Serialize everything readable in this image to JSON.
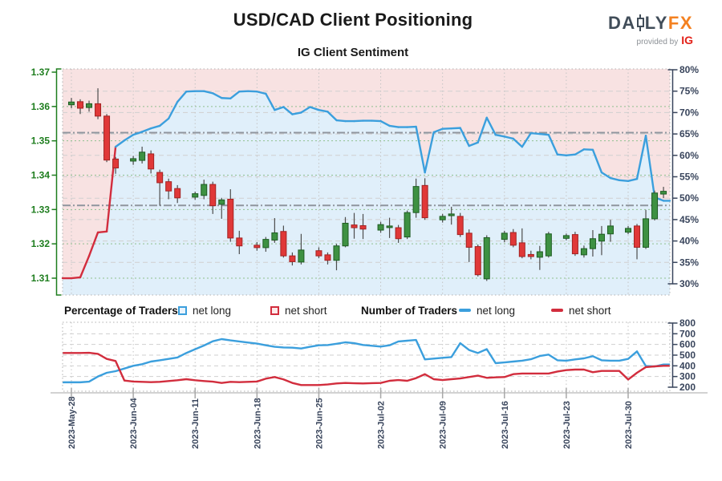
{
  "header": {
    "title": "USD/CAD Client Positioning",
    "subtitle": "IG Client Sentiment"
  },
  "logo": {
    "brand_prefix": "DA",
    "brand_suffix": "LY",
    "brand_accent": "FX",
    "provided_by": "provided by",
    "ig": "IG"
  },
  "legend": {
    "pct_group": "Percentage of Traders",
    "num_group": "Number of Traders",
    "net_long": "net long",
    "net_short": "net short"
  },
  "colors": {
    "net_long": "#3b9fdd",
    "net_short": "#d22d3d",
    "candle_up": "#3e9142",
    "candle_up_border": "#1e5c22",
    "candle_down": "#e03838",
    "candle_down_border": "#a32222",
    "wick": "#4d4d4d",
    "fill_above": "#f8e2e2",
    "fill_below": "#e0effa",
    "price_axis": "#1e7d1e",
    "value_axis": "#39455c",
    "grid_green": "#8fc08f",
    "grid_gray": "#cfcfcf",
    "ref_line": "#8f959e",
    "axis_line": "#c4c4c4"
  },
  "chart_data": [
    {
      "type": "candlestick+line",
      "title": "USD/CAD Client Positioning",
      "subtitle": "IG Client Sentiment",
      "price_axis": {
        "side": "left",
        "min": 1.31,
        "max": 1.37,
        "ticks": [
          "1.37",
          "1.36",
          "1.35",
          "1.34",
          "1.33",
          "1.32",
          "1.31"
        ]
      },
      "pct_axis": {
        "side": "right",
        "min": 30,
        "max": 80,
        "ticks": [
          "80%",
          "75%",
          "70%",
          "65%",
          "60%",
          "55%",
          "50%",
          "45%",
          "40%",
          "35%",
          "30%"
        ]
      },
      "x_tick_labels": [
        "2023-May-28",
        "2023-Jun-04",
        "2023-Jun-11",
        "2023-Jun-18",
        "2023-Jun-25",
        "2023-Jul-02",
        "2023-Jul-09",
        "2023-Jul-16",
        "2023-Jul-23",
        "2023-Jul-30"
      ],
      "x_tick_index": [
        0,
        7,
        14,
        21,
        28,
        35,
        42,
        49,
        56,
        63
      ],
      "days_total": 68,
      "ref_lines_pct": [
        65.3,
        48.3
      ],
      "sentiment_net_long_pct": [
        31.3,
        31.5,
        36.5,
        42.0,
        42.2,
        62.0,
        63.5,
        64.8,
        65.5,
        66.3,
        66.9,
        68.6,
        72.5,
        74.9,
        75.0,
        75.0,
        74.5,
        73.4,
        73.3,
        74.9,
        75.0,
        74.9,
        74.4,
        70.6,
        71.3,
        69.6,
        70.0,
        71.3,
        70.6,
        70.2,
        68.2,
        68.0,
        68.0,
        68.1,
        68.1,
        68.0,
        66.9,
        66.6,
        66.6,
        66.7,
        56.0,
        65.4,
        66.2,
        66.3,
        66.4,
        62.2,
        63.0,
        68.8,
        64.8,
        64.4,
        63.9,
        62.0,
        65.2,
        65.0,
        64.8,
        60.2,
        60.0,
        60.2,
        61.4,
        61.3,
        56.0,
        54.7,
        54.2,
        54.0,
        54.5,
        64.6,
        50.2,
        49.4
      ],
      "candles_ohlc": [
        [
          0,
          1.3605,
          1.3625,
          1.3595,
          1.3613
        ],
        [
          1,
          1.3614,
          1.3621,
          1.3578,
          1.3595
        ],
        [
          2,
          1.3597,
          1.3617,
          1.3585,
          1.3608
        ],
        [
          3,
          1.3608,
          1.3653,
          1.3563,
          1.3572
        ],
        [
          4,
          1.3572,
          1.3578,
          1.3438,
          1.3444
        ],
        [
          5,
          1.3447,
          1.3453,
          1.3404,
          1.3421
        ],
        [
          7,
          1.3441,
          1.3456,
          1.343,
          1.3448
        ],
        [
          8,
          1.3443,
          1.3483,
          1.3434,
          1.3467
        ],
        [
          9,
          1.3462,
          1.3472,
          1.3405,
          1.3418
        ],
        [
          10,
          1.3408,
          1.3416,
          1.3311,
          1.3378
        ],
        [
          11,
          1.3381,
          1.339,
          1.333,
          1.3354
        ],
        [
          12,
          1.3361,
          1.3371,
          1.3319,
          1.3334
        ],
        [
          14,
          1.3336,
          1.3352,
          1.3328,
          1.3346
        ],
        [
          15,
          1.3341,
          1.3387,
          1.333,
          1.3373
        ],
        [
          16,
          1.3373,
          1.3381,
          1.3287,
          1.3311
        ],
        [
          17,
          1.3315,
          1.3334,
          1.3273,
          1.3328
        ],
        [
          18,
          1.333,
          1.3359,
          1.3206,
          1.3217
        ],
        [
          19,
          1.3217,
          1.3238,
          1.317,
          1.3194
        ],
        [
          21,
          1.3196,
          1.3205,
          1.318,
          1.3189
        ],
        [
          22,
          1.3189,
          1.322,
          1.3177,
          1.3213
        ],
        [
          23,
          1.3211,
          1.3275,
          1.3203,
          1.3232
        ],
        [
          24,
          1.3236,
          1.3253,
          1.316,
          1.3165
        ],
        [
          25,
          1.3165,
          1.3175,
          1.3137,
          1.3148
        ],
        [
          26,
          1.3147,
          1.3229,
          1.314,
          1.3182
        ],
        [
          28,
          1.318,
          1.319,
          1.3158,
          1.3165
        ],
        [
          29,
          1.3168,
          1.3175,
          1.314,
          1.3152
        ],
        [
          30,
          1.3152,
          1.32,
          1.3123,
          1.3194
        ],
        [
          31,
          1.3194,
          1.3278,
          1.319,
          1.326
        ],
        [
          32,
          1.3255,
          1.329,
          1.3215,
          1.3247
        ],
        [
          33,
          1.3253,
          1.3287,
          1.3214,
          1.3243
        ],
        [
          35,
          1.324,
          1.3264,
          1.3232,
          1.3256
        ],
        [
          36,
          1.3248,
          1.3276,
          1.3217,
          1.3252
        ],
        [
          37,
          1.3247,
          1.3255,
          1.3203,
          1.3215
        ],
        [
          38,
          1.322,
          1.3297,
          1.3214,
          1.3291
        ],
        [
          39,
          1.3291,
          1.339,
          1.3276,
          1.3367
        ],
        [
          40,
          1.337,
          1.3391,
          1.327,
          1.3276
        ],
        [
          42,
          1.327,
          1.3287,
          1.3262,
          1.328
        ],
        [
          43,
          1.3282,
          1.3308,
          1.3256,
          1.3287
        ],
        [
          44,
          1.328,
          1.329,
          1.322,
          1.3227
        ],
        [
          45,
          1.3231,
          1.3242,
          1.3147,
          1.319
        ],
        [
          46,
          1.3192,
          1.3198,
          1.3105,
          1.311
        ],
        [
          47,
          1.3098,
          1.3225,
          1.3092,
          1.3218
        ],
        [
          49,
          1.3213,
          1.3238,
          1.3205,
          1.3231
        ],
        [
          50,
          1.3233,
          1.3243,
          1.319,
          1.3196
        ],
        [
          51,
          1.3203,
          1.3245,
          1.3158,
          1.3163
        ],
        [
          52,
          1.3169,
          1.318,
          1.3155,
          1.3163
        ],
        [
          53,
          1.3161,
          1.3194,
          1.3124,
          1.3177
        ],
        [
          54,
          1.3165,
          1.3235,
          1.316,
          1.3229
        ],
        [
          56,
          1.3216,
          1.323,
          1.321,
          1.3224
        ],
        [
          57,
          1.3227,
          1.3235,
          1.3165,
          1.3171
        ],
        [
          58,
          1.3168,
          1.3195,
          1.316,
          1.3186
        ],
        [
          59,
          1.3186,
          1.324,
          1.3163,
          1.3215
        ],
        [
          60,
          1.3208,
          1.3252,
          1.3167,
          1.3228
        ],
        [
          61,
          1.3229,
          1.327,
          1.3206,
          1.3252
        ],
        [
          63,
          1.3234,
          1.3252,
          1.3228,
          1.3245
        ],
        [
          64,
          1.3252,
          1.3258,
          1.3155,
          1.319
        ],
        [
          65,
          1.319,
          1.3299,
          1.3185,
          1.3273
        ],
        [
          66,
          1.3273,
          1.3355,
          1.3268,
          1.3348
        ],
        [
          67,
          1.3345,
          1.3366,
          1.3333,
          1.3353
        ]
      ]
    },
    {
      "type": "line",
      "title": "Number of Traders",
      "y_axis": {
        "side": "right",
        "min": 200,
        "max": 800,
        "ticks": [
          "800",
          "700",
          "600",
          "500",
          "400",
          "300",
          "200"
        ]
      },
      "series": [
        {
          "name": "net long",
          "color_key": "net_long",
          "values": [
            246,
            246,
            252,
            300,
            335,
            350,
            375,
            400,
            415,
            440,
            452,
            465,
            478,
            520,
            555,
            590,
            630,
            650,
            638,
            628,
            618,
            608,
            592,
            578,
            572,
            570,
            562,
            578,
            592,
            594,
            606,
            620,
            612,
            595,
            588,
            580,
            592,
            628,
            635,
            642,
            460,
            468,
            475,
            482,
            612,
            548,
            520,
            556,
            425,
            432,
            440,
            448,
            462,
            492,
            505,
            452,
            448,
            460,
            470,
            490,
            452,
            448,
            448,
            465,
            535,
            398,
            394,
            412
          ]
        },
        {
          "name": "net short",
          "color_key": "net_short",
          "values": [
            520,
            520,
            522,
            512,
            465,
            445,
            262,
            253,
            250,
            247,
            250,
            258,
            265,
            275,
            265,
            258,
            252,
            240,
            250,
            247,
            250,
            253,
            280,
            295,
            273,
            240,
            220,
            220,
            220,
            226,
            235,
            240,
            237,
            235,
            238,
            240,
            260,
            267,
            260,
            285,
            322,
            275,
            267,
            275,
            282,
            295,
            308,
            288,
            292,
            295,
            322,
            328,
            328,
            328,
            328,
            347,
            360,
            365,
            365,
            340,
            352,
            352,
            352,
            272,
            335,
            388,
            395,
            400
          ]
        }
      ]
    }
  ]
}
